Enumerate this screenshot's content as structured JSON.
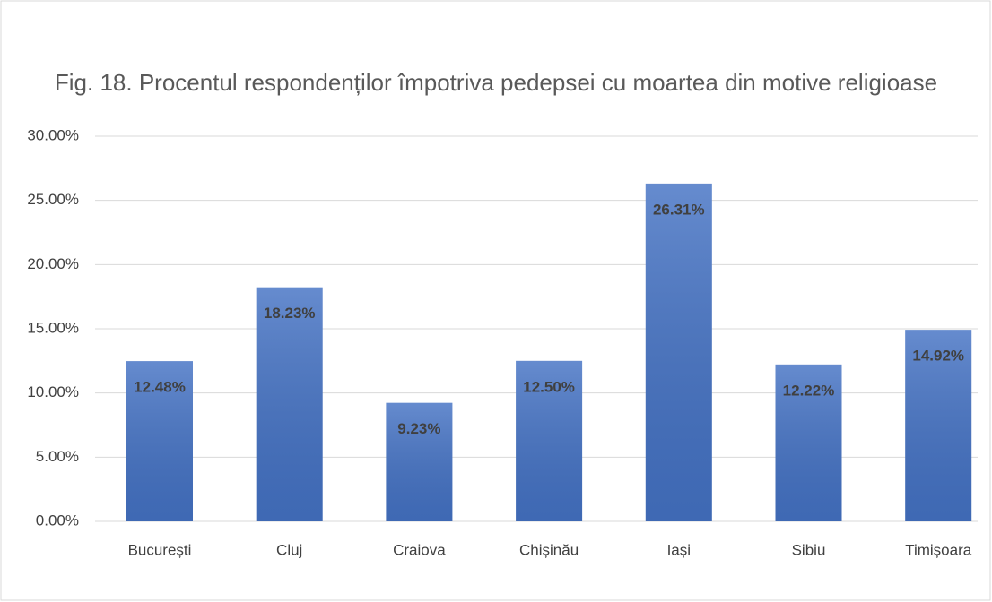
{
  "chart_data": {
    "type": "bar",
    "title": "Fig. 18. Procentul respondenților împotriva pedepsei cu moartea din motive religioase",
    "categories": [
      "București",
      "Cluj",
      "Craiova",
      "Chișinău",
      "Iași",
      "Sibiu",
      "Timișoara"
    ],
    "values": [
      12.48,
      18.23,
      9.23,
      12.5,
      26.31,
      12.22,
      14.92
    ],
    "value_labels": [
      "12.48%",
      "18.23%",
      "9.23%",
      "12.50%",
      "26.31%",
      "12.22%",
      "14.92%"
    ],
    "color": "#4472c4",
    "ylim": [
      0,
      30
    ],
    "yticks": [
      {
        "value": 0,
        "label": "0.00%"
      },
      {
        "value": 5,
        "label": "5.00%"
      },
      {
        "value": 10,
        "label": "10.00%"
      },
      {
        "value": 15,
        "label": "15.00%"
      },
      {
        "value": 20,
        "label": "20.00%"
      },
      {
        "value": 25,
        "label": "25.00%"
      },
      {
        "value": 30,
        "label": "30.00%"
      }
    ],
    "grid": true
  }
}
